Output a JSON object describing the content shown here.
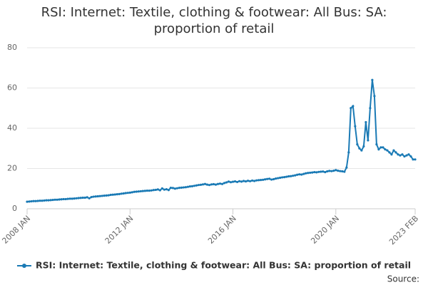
{
  "chart_data": {
    "type": "line",
    "title": "RSI: Internet: Textile, clothing & footwear: All Bus: SA: proportion of retail",
    "source": "Source:",
    "x": [
      "2008-01",
      "2008-02",
      "2008-03",
      "2008-04",
      "2008-05",
      "2008-06",
      "2008-07",
      "2008-08",
      "2008-09",
      "2008-10",
      "2008-11",
      "2008-12",
      "2009-01",
      "2009-02",
      "2009-03",
      "2009-04",
      "2009-05",
      "2009-06",
      "2009-07",
      "2009-08",
      "2009-09",
      "2009-10",
      "2009-11",
      "2009-12",
      "2010-01",
      "2010-02",
      "2010-03",
      "2010-04",
      "2010-05",
      "2010-06",
      "2010-07",
      "2010-08",
      "2010-09",
      "2010-10",
      "2010-11",
      "2010-12",
      "2011-01",
      "2011-02",
      "2011-03",
      "2011-04",
      "2011-05",
      "2011-06",
      "2011-07",
      "2011-08",
      "2011-09",
      "2011-10",
      "2011-11",
      "2011-12",
      "2012-01",
      "2012-02",
      "2012-03",
      "2012-04",
      "2012-05",
      "2012-06",
      "2012-07",
      "2012-08",
      "2012-09",
      "2012-10",
      "2012-11",
      "2012-12",
      "2013-01",
      "2013-02",
      "2013-03",
      "2013-04",
      "2013-05",
      "2013-06",
      "2013-07",
      "2013-08",
      "2013-09",
      "2013-10",
      "2013-11",
      "2013-12",
      "2014-01",
      "2014-02",
      "2014-03",
      "2014-04",
      "2014-05",
      "2014-06",
      "2014-07",
      "2014-08",
      "2014-09",
      "2014-10",
      "2014-11",
      "2014-12",
      "2015-01",
      "2015-02",
      "2015-03",
      "2015-04",
      "2015-05",
      "2015-06",
      "2015-07",
      "2015-08",
      "2015-09",
      "2015-10",
      "2015-11",
      "2015-12",
      "2016-01",
      "2016-02",
      "2016-03",
      "2016-04",
      "2016-05",
      "2016-06",
      "2016-07",
      "2016-08",
      "2016-09",
      "2016-10",
      "2016-11",
      "2016-12",
      "2017-01",
      "2017-02",
      "2017-03",
      "2017-04",
      "2017-05",
      "2017-06",
      "2017-07",
      "2017-08",
      "2017-09",
      "2017-10",
      "2017-11",
      "2017-12",
      "2018-01",
      "2018-02",
      "2018-03",
      "2018-04",
      "2018-05",
      "2018-06",
      "2018-07",
      "2018-08",
      "2018-09",
      "2018-10",
      "2018-11",
      "2018-12",
      "2019-01",
      "2019-02",
      "2019-03",
      "2019-04",
      "2019-05",
      "2019-06",
      "2019-07",
      "2019-08",
      "2019-09",
      "2019-10",
      "2019-11",
      "2019-12",
      "2020-01",
      "2020-02",
      "2020-03",
      "2020-04",
      "2020-05",
      "2020-06",
      "2020-07",
      "2020-08",
      "2020-09",
      "2020-10",
      "2020-11",
      "2020-12",
      "2021-01",
      "2021-02",
      "2021-03",
      "2021-04",
      "2021-05",
      "2021-06",
      "2021-07",
      "2021-08",
      "2021-09",
      "2021-10",
      "2021-11",
      "2021-12",
      "2022-01",
      "2022-02",
      "2022-03",
      "2022-04",
      "2022-05",
      "2022-06",
      "2022-07",
      "2022-08",
      "2022-09",
      "2022-10",
      "2022-11",
      "2022-12",
      "2023-01",
      "2023-02"
    ],
    "series": [
      {
        "name": "RSI: Internet: Textile, clothing & footwear: All Bus: SA: proportion of retail",
        "color": "#1a7ab5",
        "values": [
          3.5,
          3.6,
          3.7,
          3.8,
          3.8,
          3.9,
          4.0,
          4.0,
          4.1,
          4.2,
          4.2,
          4.3,
          4.4,
          4.5,
          4.5,
          4.6,
          4.7,
          4.8,
          4.8,
          4.9,
          5.0,
          5.0,
          5.1,
          5.2,
          5.3,
          5.4,
          5.5,
          5.5,
          5.7,
          5.2,
          5.8,
          6.0,
          6.1,
          6.2,
          6.3,
          6.4,
          6.5,
          6.6,
          6.7,
          6.9,
          7.0,
          7.1,
          7.2,
          7.3,
          7.5,
          7.6,
          7.8,
          7.9,
          8.0,
          8.2,
          8.4,
          8.5,
          8.6,
          8.7,
          8.8,
          8.9,
          9.0,
          9.0,
          9.1,
          9.3,
          9.4,
          9.6,
          9.2,
          10.1,
          9.5,
          9.7,
          9.3,
          10.4,
          10.3,
          10.0,
          10.2,
          10.4,
          10.5,
          10.6,
          10.7,
          10.9,
          11.1,
          11.2,
          11.4,
          11.6,
          11.8,
          11.9,
          12.1,
          12.3,
          12.0,
          11.8,
          12.1,
          12.2,
          12.0,
          12.3,
          12.5,
          12.3,
          12.8,
          13.1,
          13.5,
          13.2,
          13.4,
          13.6,
          13.3,
          13.7,
          13.5,
          13.8,
          13.6,
          13.9,
          13.7,
          14.0,
          13.8,
          14.1,
          14.2,
          14.3,
          14.4,
          14.6,
          14.8,
          14.9,
          14.5,
          14.7,
          15.0,
          15.2,
          15.4,
          15.6,
          15.7,
          15.9,
          16.1,
          16.2,
          16.4,
          16.6,
          16.9,
          17.1,
          17.0,
          17.3,
          17.6,
          17.8,
          17.9,
          18.0,
          18.2,
          18.1,
          18.3,
          18.4,
          18.5,
          18.2,
          18.6,
          18.8,
          18.7,
          18.9,
          19.2,
          18.9,
          18.7,
          18.6,
          18.4,
          20.5,
          28.0,
          50.0,
          51.0,
          41.0,
          32.0,
          30.0,
          29.0,
          31.0,
          43.0,
          34.0,
          50.0,
          64.0,
          56.0,
          32.0,
          29.5,
          30.5,
          30.5,
          29.5,
          29.0,
          28.0,
          27.0,
          29.0,
          28.0,
          27.0,
          26.5,
          27.0,
          26.0,
          26.5,
          27.0,
          26.0,
          24.5,
          24.5
        ]
      }
    ],
    "xlim": [
      "2008-01",
      "2023-02"
    ],
    "xticks": [
      {
        "value": "2008-01",
        "label": "2008 JAN"
      },
      {
        "value": "2012-01",
        "label": "2012 JAN"
      },
      {
        "value": "2016-01",
        "label": "2016 JAN"
      },
      {
        "value": "2020-01",
        "label": "2020 JAN"
      },
      {
        "value": "2023-02",
        "label": "2023 FEB"
      }
    ],
    "ylim": [
      0,
      80
    ],
    "yticks": [
      0,
      20,
      40,
      60,
      80
    ],
    "grid": true,
    "legend": "bottom"
  }
}
